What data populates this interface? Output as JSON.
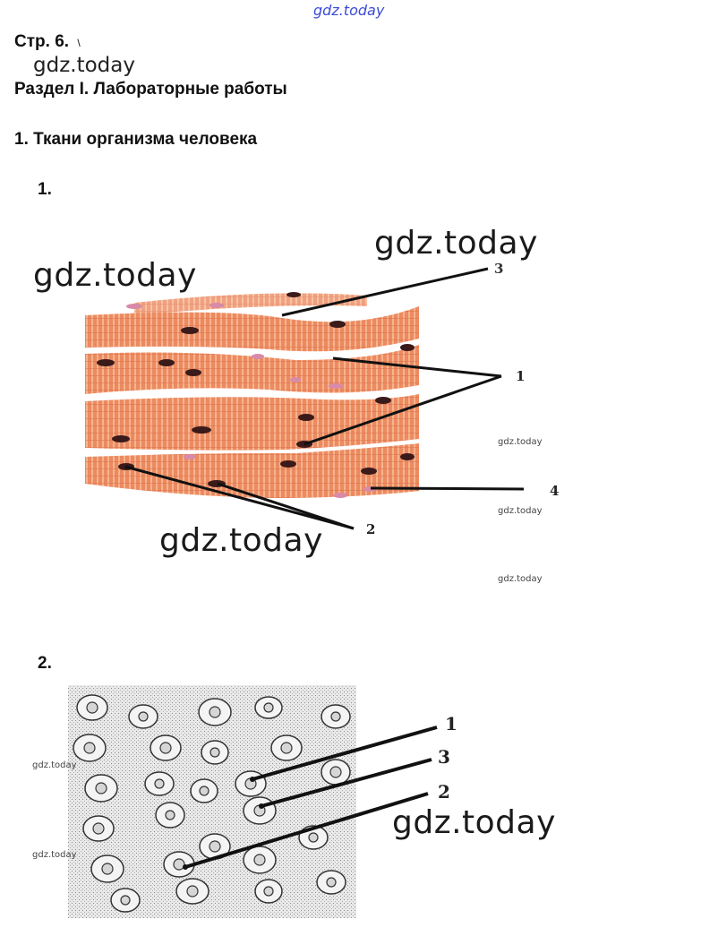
{
  "header": {
    "watermark_top": "gdz.today",
    "page_ref": "Стр. 6.",
    "page_mark": "\\",
    "watermark_sub": "gdz.today",
    "section": "Раздел I. Лабораторные работы",
    "topic": "1. Ткани организма человека"
  },
  "figure1": {
    "number": "1.",
    "labels": [
      "3",
      "1",
      "4",
      "2"
    ],
    "watermarks": {
      "big_right": "gdz.today",
      "big_left": "gdz.today",
      "big_bottom": "gdz.today",
      "small_1": "gdz.today",
      "small_2": "gdz.today",
      "small_3": "gdz.today"
    }
  },
  "figure2": {
    "number": "2.",
    "labels": [
      "1",
      "3",
      "2"
    ],
    "watermarks": {
      "big": "gdz.today",
      "small_1": "gdz.today",
      "small_2": "gdz.today"
    }
  },
  "colors": {
    "muscle": "#ec8a60",
    "stripe": "#f6b48f",
    "nucleus": "#3b1a1a",
    "pink_nucleus": "#d88aa8",
    "pointer": "#111111"
  }
}
